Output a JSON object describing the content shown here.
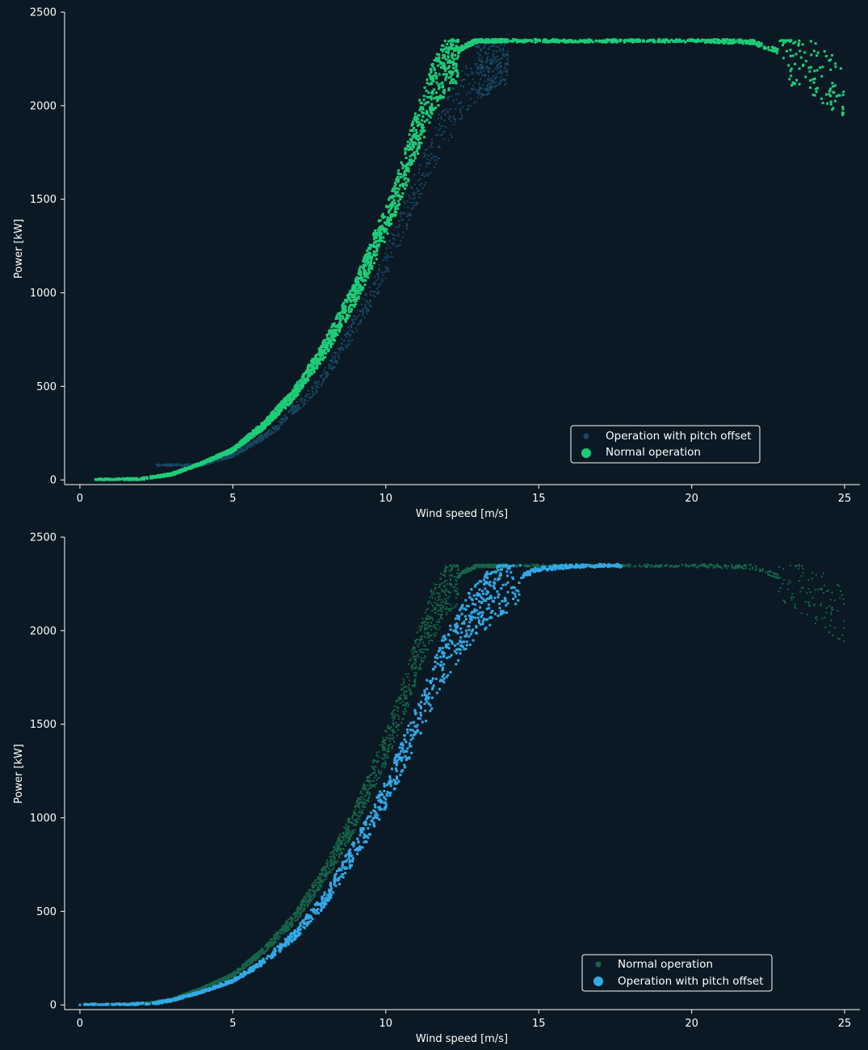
{
  "colors": {
    "background": "#0a1923",
    "axis": "#ffffff",
    "normal_bright": "#1ecc78",
    "normal_dim": "#17654a",
    "pitch_bright": "#33a9e6",
    "pitch_dim": "#1b4765"
  },
  "chart_data": [
    {
      "type": "scatter",
      "title": "",
      "xlabel": "Wind speed [m/s]",
      "ylabel": "Power [kW]",
      "xlim": [
        -0.5,
        25.5
      ],
      "ylim": [
        -25,
        2500
      ],
      "xticks": [
        "0",
        "5",
        "10",
        "15",
        "20",
        "25"
      ],
      "yticks": [
        "0",
        "500",
        "1000",
        "1500",
        "2000",
        "2500"
      ],
      "grid": false,
      "legend_position": "lower-right",
      "legend": [
        "Operation with pitch offset",
        "Normal operation"
      ],
      "rated_power_kw": 2350,
      "series": [
        {
          "name": "Operation with pitch offset",
          "color": "#1b4765",
          "samples": [
            [
              4.0,
              80
            ],
            [
              5.0,
              130
            ],
            [
              6.0,
              230
            ],
            [
              6.5,
              290
            ],
            [
              7.0,
              380
            ],
            [
              7.5,
              450
            ],
            [
              8.0,
              560
            ],
            [
              8.5,
              690
            ],
            [
              9.0,
              830
            ],
            [
              9.5,
              980
            ],
            [
              10.0,
              1150
            ],
            [
              10.5,
              1360
            ],
            [
              11.0,
              1570
            ],
            [
              11.5,
              1760
            ],
            [
              12.0,
              1910
            ],
            [
              12.5,
              2060
            ],
            [
              13.0,
              2180
            ],
            [
              14.0,
              2280
            ]
          ]
        },
        {
          "name": "Normal operation",
          "color": "#1ecc78",
          "samples": [
            [
              0.5,
              0
            ],
            [
              2.0,
              5
            ],
            [
              3.0,
              30
            ],
            [
              4.0,
              90
            ],
            [
              5.0,
              160
            ],
            [
              6.0,
              290
            ],
            [
              7.0,
              460
            ],
            [
              8.0,
              700
            ],
            [
              9.0,
              1000
            ],
            [
              10.0,
              1380
            ],
            [
              10.5,
              1590
            ],
            [
              11.0,
              1850
            ],
            [
              11.5,
              2080
            ],
            [
              12.0,
              2230
            ],
            [
              12.5,
              2310
            ],
            [
              13.0,
              2350
            ],
            [
              15.0,
              2350
            ],
            [
              20.0,
              2350
            ],
            [
              22.0,
              2340
            ],
            [
              23.5,
              2250
            ],
            [
              25.0,
              2080
            ]
          ]
        }
      ]
    },
    {
      "type": "scatter",
      "title": "",
      "xlabel": "Wind speed [m/s]",
      "ylabel": "Power [kW]",
      "xlim": [
        -0.5,
        25.5
      ],
      "ylim": [
        -25,
        2500
      ],
      "xticks": [
        "0",
        "5",
        "10",
        "15",
        "20",
        "25"
      ],
      "yticks": [
        "0",
        "500",
        "1000",
        "1500",
        "2000",
        "2500"
      ],
      "grid": false,
      "legend_position": "lower-right",
      "legend": [
        "Normal operation",
        "Operation with pitch offset"
      ],
      "rated_power_kw": 2350,
      "series": [
        {
          "name": "Normal operation",
          "color": "#17654a",
          "samples": [
            [
              0.5,
              0
            ],
            [
              2.0,
              5
            ],
            [
              3.0,
              30
            ],
            [
              4.0,
              90
            ],
            [
              5.0,
              160
            ],
            [
              6.0,
              290
            ],
            [
              7.0,
              460
            ],
            [
              8.0,
              700
            ],
            [
              9.0,
              1000
            ],
            [
              10.0,
              1380
            ],
            [
              10.5,
              1590
            ],
            [
              11.0,
              1850
            ],
            [
              11.5,
              2080
            ],
            [
              12.0,
              2230
            ],
            [
              12.5,
              2310
            ],
            [
              13.0,
              2350
            ],
            [
              15.0,
              2350
            ],
            [
              20.0,
              2350
            ],
            [
              22.0,
              2340
            ],
            [
              23.5,
              2250
            ],
            [
              25.0,
              2080
            ]
          ]
        },
        {
          "name": "Operation with pitch offset",
          "color": "#33a9e6",
          "samples": [
            [
              0.0,
              0
            ],
            [
              1.5,
              2
            ],
            [
              2.5,
              10
            ],
            [
              3.0,
              25
            ],
            [
              4.0,
              70
            ],
            [
              5.0,
              130
            ],
            [
              6.0,
              230
            ],
            [
              7.0,
              370
            ],
            [
              8.0,
              560
            ],
            [
              9.0,
              830
            ],
            [
              9.5,
              970
            ],
            [
              10.0,
              1130
            ],
            [
              10.5,
              1310
            ],
            [
              11.0,
              1500
            ],
            [
              11.5,
              1700
            ],
            [
              12.0,
              1880
            ],
            [
              12.5,
              2010
            ],
            [
              13.0,
              2120
            ],
            [
              14.0,
              2260
            ],
            [
              15.0,
              2330
            ],
            [
              16.5,
              2350
            ],
            [
              17.7,
              2350
            ]
          ]
        }
      ]
    }
  ]
}
